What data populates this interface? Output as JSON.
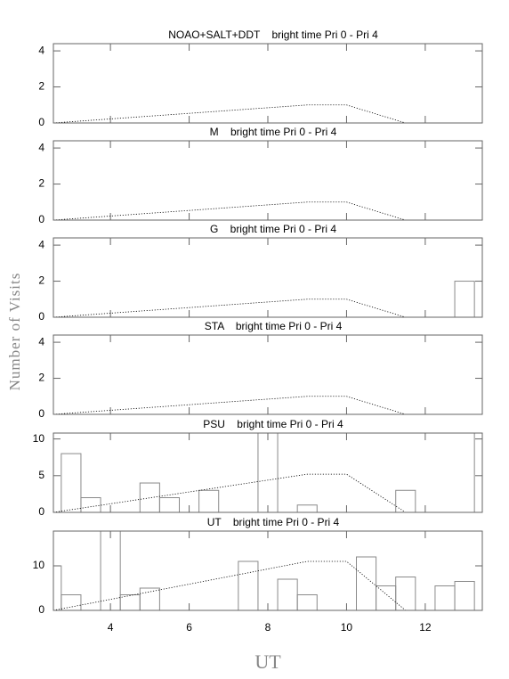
{
  "axis_labels": {
    "x": "UT",
    "y": "Number of Visits"
  },
  "chart_data": [
    {
      "type": "histogram",
      "title": "NOAO+SALT+DDT    bright time Pri 0 - Pri 4",
      "xlim": [
        2.55,
        13.45
      ],
      "xticks": [
        4,
        6,
        8,
        10,
        12
      ],
      "ylim": [
        0,
        4.4
      ],
      "yticks": [
        0,
        2,
        4
      ],
      "line": {
        "x": [
          2.55,
          9,
          10,
          11.5
        ],
        "y": [
          0,
          1,
          1,
          0
        ]
      }
    },
    {
      "type": "histogram",
      "title": "M    bright time Pri 0 - Pri 4",
      "xlim": [
        2.55,
        13.45
      ],
      "xticks": [
        4,
        6,
        8,
        10,
        12
      ],
      "ylim": [
        0,
        4.4
      ],
      "yticks": [
        0,
        2,
        4
      ],
      "line": {
        "x": [
          2.55,
          9,
          10,
          11.5
        ],
        "y": [
          0,
          1,
          1,
          0
        ]
      }
    },
    {
      "type": "histogram",
      "title": "G    bright time Pri 0 - Pri 4",
      "xlim": [
        2.55,
        13.45
      ],
      "xticks": [
        4,
        6,
        8,
        10,
        12
      ],
      "ylim": [
        0,
        4.4
      ],
      "yticks": [
        0,
        2,
        4
      ],
      "bins": [
        12.75,
        13.25
      ],
      "values": [
        2
      ],
      "line": {
        "x": [
          2.55,
          9,
          10,
          11.5
        ],
        "y": [
          0,
          1,
          1,
          0
        ]
      }
    },
    {
      "type": "histogram",
      "title": "STA    bright time Pri 0 - Pri 4",
      "xlim": [
        2.55,
        13.45
      ],
      "xticks": [
        4,
        6,
        8,
        10,
        12
      ],
      "ylim": [
        0,
        4.4
      ],
      "yticks": [
        0,
        2,
        4
      ],
      "line": {
        "x": [
          2.55,
          9,
          10,
          11.5
        ],
        "y": [
          0,
          1,
          1,
          0
        ]
      }
    },
    {
      "type": "histogram",
      "title": "PSU    bright time Pri 0 - Pri 4",
      "xlim": [
        2.55,
        13.45
      ],
      "xticks": [
        4,
        6,
        8,
        10,
        12
      ],
      "ylim": [
        0,
        10.8
      ],
      "yticks": [
        0,
        5,
        10
      ],
      "bins": [
        2.25,
        2.75,
        3.25,
        3.75,
        4.25,
        4.75,
        5.25,
        5.75,
        6.25,
        6.75,
        7.25,
        7.75,
        8.25,
        8.75,
        9.25,
        9.75,
        10.25,
        10.75,
        11.25,
        11.75,
        12.25,
        12.75,
        13.25,
        13.75
      ],
      "values": [
        0,
        8,
        2,
        0,
        0,
        4,
        2,
        0,
        3,
        0,
        0,
        11,
        0,
        1,
        0,
        0,
        0,
        0,
        3,
        0,
        0,
        0,
        11
      ],
      "line": {
        "x": [
          2.55,
          9,
          10,
          11.5
        ],
        "y": [
          0,
          5.2,
          5.2,
          0
        ]
      }
    },
    {
      "type": "histogram",
      "title": "UT    bright time Pri 0 - Pri 4",
      "xlim": [
        2.55,
        13.45
      ],
      "xticks": [
        4,
        6,
        8,
        10,
        12
      ],
      "show_xtick_labels": true,
      "ylim": [
        0,
        17.8
      ],
      "yticks": [
        0,
        10
      ],
      "bins": [
        2.25,
        2.75,
        3.25,
        3.75,
        4.25,
        4.75,
        5.25,
        5.75,
        6.25,
        6.75,
        7.25,
        7.75,
        8.25,
        8.75,
        9.25,
        9.75,
        10.25,
        10.75,
        11.25,
        11.75,
        12.25,
        12.75,
        13.25,
        13.75
      ],
      "values": [
        10,
        3.5,
        0,
        18,
        3.5,
        5,
        0,
        0,
        0,
        0,
        11,
        0,
        7,
        3.5,
        0,
        0,
        12,
        5.5,
        7.5,
        0,
        5.5,
        6.5,
        0
      ],
      "line": {
        "x": [
          2.55,
          9,
          10,
          11.5
        ],
        "y": [
          0,
          11,
          11,
          0
        ]
      }
    }
  ]
}
